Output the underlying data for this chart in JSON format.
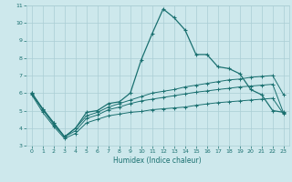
{
  "xlabel": "Humidex (Indice chaleur)",
  "xlim": [
    -0.5,
    23.5
  ],
  "ylim": [
    3,
    11
  ],
  "xticks": [
    0,
    1,
    2,
    3,
    4,
    5,
    6,
    7,
    8,
    9,
    10,
    11,
    12,
    13,
    14,
    15,
    16,
    17,
    18,
    19,
    20,
    21,
    22,
    23
  ],
  "yticks": [
    3,
    4,
    5,
    6,
    7,
    8,
    9,
    10,
    11
  ],
  "bg_color": "#cde8ec",
  "grid_color": "#aacdd4",
  "line_color": "#1a7070",
  "line1_x": [
    0,
    1,
    2,
    3,
    4,
    5,
    6,
    7,
    8,
    9,
    10,
    11,
    12,
    13,
    14,
    15,
    16,
    17,
    18,
    19,
    20,
    21,
    22,
    23
  ],
  "line1_y": [
    6.0,
    5.1,
    4.3,
    3.5,
    4.0,
    4.9,
    5.0,
    5.4,
    5.5,
    6.0,
    7.9,
    9.4,
    10.8,
    10.3,
    9.6,
    8.2,
    8.2,
    7.5,
    7.4,
    7.1,
    6.2,
    5.9,
    5.0,
    4.9
  ],
  "line2_x": [
    0,
    1,
    2,
    3,
    4,
    5,
    6,
    7,
    8,
    9,
    10,
    11,
    12,
    13,
    14,
    15,
    16,
    17,
    18,
    19,
    20,
    21,
    22,
    23
  ],
  "line2_y": [
    6.0,
    5.1,
    4.3,
    3.5,
    4.0,
    4.7,
    4.9,
    5.2,
    5.4,
    5.6,
    5.8,
    6.0,
    6.1,
    6.2,
    6.35,
    6.45,
    6.55,
    6.65,
    6.75,
    6.8,
    6.9,
    6.95,
    7.0,
    5.9
  ],
  "line3_x": [
    0,
    1,
    2,
    3,
    4,
    5,
    6,
    7,
    8,
    9,
    10,
    11,
    12,
    13,
    14,
    15,
    16,
    17,
    18,
    19,
    20,
    21,
    22,
    23
  ],
  "line3_y": [
    5.95,
    5.05,
    4.2,
    3.5,
    3.85,
    4.55,
    4.75,
    5.05,
    5.2,
    5.4,
    5.55,
    5.65,
    5.75,
    5.85,
    5.95,
    6.05,
    6.12,
    6.2,
    6.27,
    6.35,
    6.4,
    6.45,
    6.5,
    4.85
  ],
  "line4_x": [
    0,
    1,
    2,
    3,
    4,
    5,
    6,
    7,
    8,
    9,
    10,
    11,
    12,
    13,
    14,
    15,
    16,
    17,
    18,
    19,
    20,
    21,
    22,
    23
  ],
  "line4_y": [
    5.9,
    4.9,
    4.1,
    3.4,
    3.7,
    4.3,
    4.5,
    4.7,
    4.8,
    4.9,
    4.95,
    5.05,
    5.1,
    5.15,
    5.2,
    5.3,
    5.38,
    5.45,
    5.5,
    5.55,
    5.6,
    5.65,
    5.7,
    4.8
  ]
}
